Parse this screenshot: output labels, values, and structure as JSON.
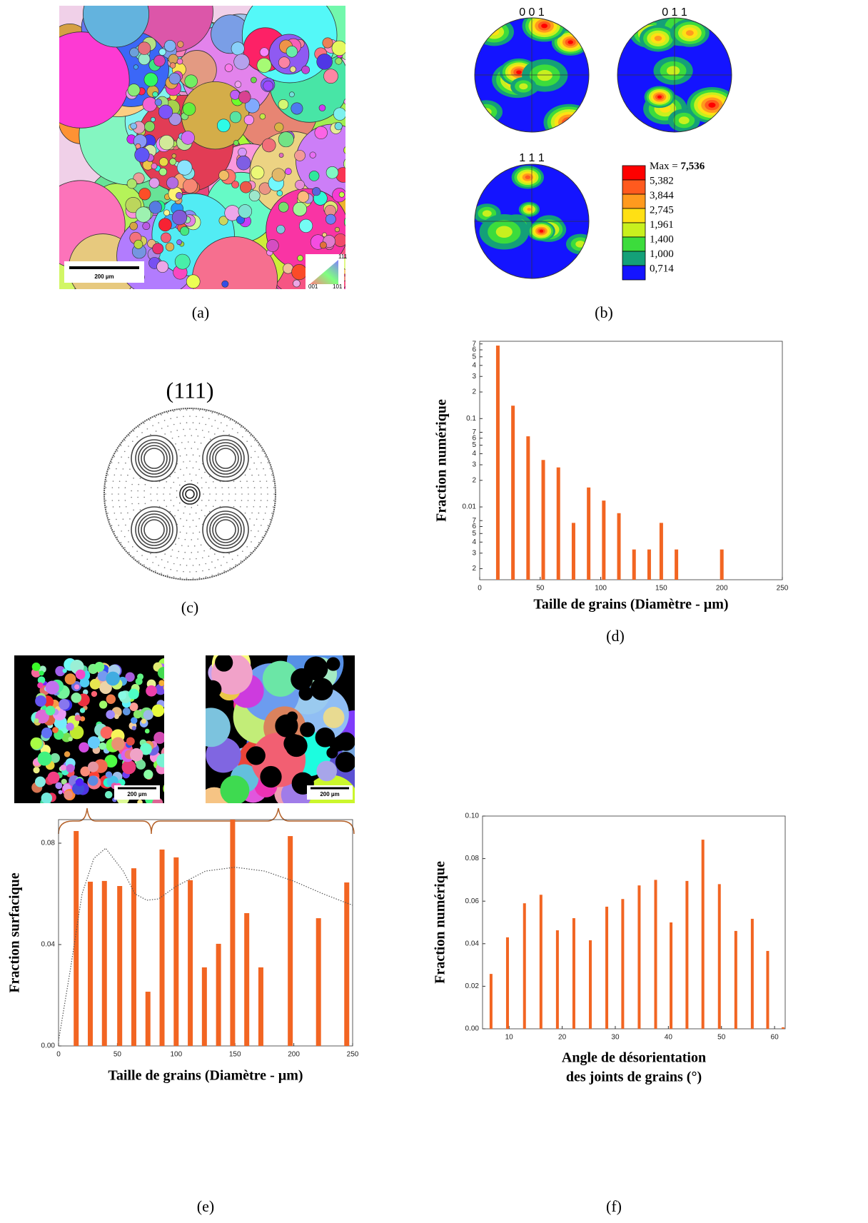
{
  "captions": [
    "(a)",
    "(b)",
    "(c)",
    "(d)",
    "(e)",
    "(f)"
  ],
  "map": {
    "scale_bar": "200 µm",
    "triangle": [
      "111",
      "001",
      "101"
    ]
  },
  "pole_figures": {
    "labels": [
      "0 0 1",
      "0 1 1",
      "1 1 1"
    ],
    "legend": {
      "max_label": "Max =",
      "max_value": "7,536",
      "levels": [
        "5,382",
        "3,844",
        "2,745",
        "1,961",
        "1,400",
        "1,000",
        "0,714"
      ],
      "colors": [
        "#ff0000",
        "#ff5a1e",
        "#ff9a1e",
        "#ffe014",
        "#c8f01e",
        "#3cdc3c",
        "#14a078",
        "#1414ff"
      ]
    }
  },
  "stereo": {
    "title": "(111)"
  },
  "insets": {
    "scale_bars": [
      "200 µm",
      "200 µm"
    ]
  },
  "chart_data": [
    {
      "type": "bar",
      "color": "#f26522",
      "log_scale": true,
      "ylabel": "Fraction numérique",
      "xlabel": "Taille de grains (Diamètre - µm)",
      "x": [
        15,
        27.5,
        40,
        52.5,
        65,
        77.5,
        90,
        102.5,
        115,
        127.5,
        140,
        150,
        162.5,
        200
      ],
      "values": [
        0.67,
        0.14,
        0.063,
        0.034,
        0.028,
        0.0066,
        0.0166,
        0.0118,
        0.0085,
        0.0033,
        0.0033,
        0.0066,
        0.0033,
        0.0033
      ],
      "xlim": [
        0,
        250
      ],
      "xticks": [
        0,
        50,
        100,
        150,
        200,
        250
      ],
      "ylim": [
        0.0015,
        0.75
      ],
      "yticks": [
        {
          "value": 0.002,
          "label": "2"
        },
        {
          "value": 0.003,
          "label": "3"
        },
        {
          "value": 0.004,
          "label": "4"
        },
        {
          "value": 0.005,
          "label": "5"
        },
        {
          "value": 0.006,
          "label": "6"
        },
        {
          "value": 0.007,
          "label": "7"
        },
        0.01,
        {
          "value": 0.02,
          "label": "2"
        },
        {
          "value": 0.03,
          "label": "3"
        },
        {
          "value": 0.04,
          "label": "4"
        },
        {
          "value": 0.05,
          "label": "5"
        },
        {
          "value": 0.06,
          "label": "6"
        },
        {
          "value": 0.07,
          "label": "7"
        },
        0.1,
        {
          "value": 0.2,
          "label": "2"
        },
        {
          "value": 0.3,
          "label": "3"
        },
        {
          "value": 0.4,
          "label": "4"
        },
        {
          "value": 0.5,
          "label": "5"
        },
        {
          "value": 0.6,
          "label": "6"
        },
        {
          "value": 0.7,
          "label": "7"
        }
      ]
    },
    {
      "type": "bar",
      "color": "#f26522",
      "ylabel": "Fraction surfacique",
      "xlabel": "Taille de grains (Diamètre - µm)",
      "x": [
        15,
        27,
        39,
        52,
        64,
        76,
        88,
        100,
        112,
        124,
        136,
        148,
        160,
        172,
        197,
        221,
        245
      ],
      "values": [
        0.0848,
        0.0648,
        0.0651,
        0.0631,
        0.0701,
        0.0214,
        0.0775,
        0.0744,
        0.0654,
        0.031,
        0.0403,
        0.0893,
        0.0524,
        0.031,
        0.0828,
        0.0504,
        0.0645
      ],
      "curve": {
        "x": [
          0,
          10,
          20,
          30,
          40,
          55,
          65,
          75,
          85,
          100,
          125,
          150,
          175,
          200,
          225,
          250
        ],
        "values": [
          0.002,
          0.03,
          0.06,
          0.074,
          0.078,
          0.069,
          0.06,
          0.0575,
          0.058,
          0.063,
          0.069,
          0.0705,
          0.069,
          0.065,
          0.06,
          0.0555
        ]
      },
      "xlim": [
        0,
        250
      ],
      "xticks": [
        0,
        50,
        100,
        150,
        200,
        250
      ],
      "ylim": [
        0,
        0.0893
      ],
      "yticks": [
        {
          "value": 0,
          "label": "0.00"
        },
        {
          "value": 0.04,
          "label": "0.04"
        },
        {
          "value": 0.08,
          "label": "0.08"
        }
      ]
    },
    {
      "type": "bar",
      "color": "#f26522",
      "ylabel": "Fraction numérique",
      "xlabel": [
        "Angle de désorientation",
        "des joints de grains (°)"
      ],
      "x": [
        6.6,
        9.7,
        12.9,
        16,
        19.1,
        22.2,
        25.3,
        28.4,
        31.4,
        34.5,
        37.6,
        40.5,
        43.5,
        46.5,
        49.6,
        52.7,
        55.8,
        58.7,
        61.6
      ],
      "values": [
        0.0258,
        0.043,
        0.059,
        0.063,
        0.0463,
        0.052,
        0.0416,
        0.0574,
        0.061,
        0.0674,
        0.07,
        0.05,
        0.0695,
        0.0889,
        0.068,
        0.046,
        0.0517,
        0.0366,
        0.0007
      ],
      "xlim": [
        5,
        62
      ],
      "xticks": [
        10,
        20,
        30,
        40,
        50,
        60
      ],
      "ylim": [
        0,
        0.1
      ],
      "yticks": [
        {
          "value": 0,
          "label": "0.00"
        },
        {
          "value": 0.02,
          "label": "0.02"
        },
        {
          "value": 0.04,
          "label": "0.04"
        },
        {
          "value": 0.06,
          "label": "0.06"
        },
        {
          "value": 0.08,
          "label": "0.08"
        },
        {
          "value": 0.1,
          "label": "0.10"
        }
      ]
    }
  ]
}
